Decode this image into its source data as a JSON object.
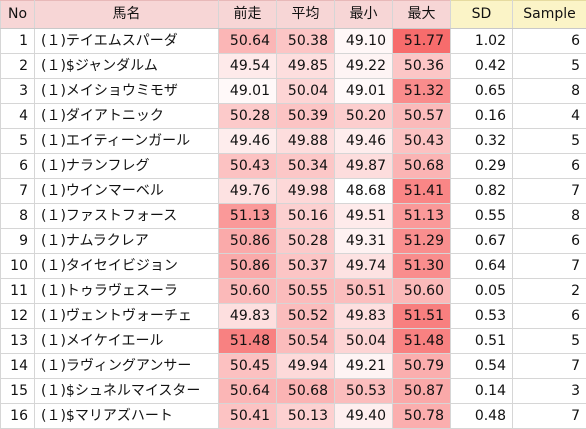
{
  "headers": {
    "no": "No",
    "name": "馬名",
    "last": "前走",
    "avg": "平均",
    "min": "最小",
    "max": "最大",
    "sd": "SD",
    "sample": "Sample"
  },
  "colors": {
    "header_fill": "#f7d6d6",
    "header_fill_stats": "#fbf4c7",
    "heat_low": "#ffffff",
    "heat_high": "#f76a6a"
  },
  "heat_scale": {
    "min": 48.6,
    "max": 51.8
  },
  "rows": [
    {
      "no": "1",
      "name": "(１)テイエムスパーダ",
      "last": "50.64",
      "avg": "50.38",
      "min": "49.10",
      "max": "51.77",
      "sd": "1.02",
      "sample": "6"
    },
    {
      "no": "2",
      "name": "(１)$ジャンダルム",
      "last": "49.54",
      "avg": "49.85",
      "min": "49.22",
      "max": "50.36",
      "sd": "0.42",
      "sample": "5"
    },
    {
      "no": "3",
      "name": "(１)メイショウミモザ",
      "last": "49.01",
      "avg": "50.04",
      "min": "49.01",
      "max": "51.32",
      "sd": "0.65",
      "sample": "8"
    },
    {
      "no": "4",
      "name": "(１)ダイアトニック",
      "last": "50.28",
      "avg": "50.39",
      "min": "50.20",
      "max": "50.57",
      "sd": "0.16",
      "sample": "4"
    },
    {
      "no": "5",
      "name": "(１)エイティーンガール",
      "last": "49.46",
      "avg": "49.88",
      "min": "49.46",
      "max": "50.43",
      "sd": "0.32",
      "sample": "5"
    },
    {
      "no": "6",
      "name": "(１)ナランフレグ",
      "last": "50.43",
      "avg": "50.34",
      "min": "49.87",
      "max": "50.68",
      "sd": "0.29",
      "sample": "6"
    },
    {
      "no": "7",
      "name": "(１)ウインマーベル",
      "last": "49.76",
      "avg": "49.98",
      "min": "48.68",
      "max": "51.41",
      "sd": "0.82",
      "sample": "7"
    },
    {
      "no": "8",
      "name": "(１)ファストフォース",
      "last": "51.13",
      "avg": "50.16",
      "min": "49.51",
      "max": "51.13",
      "sd": "0.55",
      "sample": "8"
    },
    {
      "no": "9",
      "name": "(１)ナムラクレア",
      "last": "50.86",
      "avg": "50.28",
      "min": "49.31",
      "max": "51.29",
      "sd": "0.67",
      "sample": "6"
    },
    {
      "no": "10",
      "name": "(１)タイセイビジョン",
      "last": "50.86",
      "avg": "50.37",
      "min": "49.74",
      "max": "51.30",
      "sd": "0.64",
      "sample": "7"
    },
    {
      "no": "11",
      "name": "(１)トゥラヴェスーラ",
      "last": "50.60",
      "avg": "50.55",
      "min": "50.51",
      "max": "50.60",
      "sd": "0.05",
      "sample": "2"
    },
    {
      "no": "12",
      "name": "(１)ヴェントヴォーチェ",
      "last": "49.83",
      "avg": "50.52",
      "min": "49.83",
      "max": "51.51",
      "sd": "0.53",
      "sample": "6"
    },
    {
      "no": "13",
      "name": "(１)メイケイエール",
      "last": "51.48",
      "avg": "50.54",
      "min": "50.04",
      "max": "51.48",
      "sd": "0.51",
      "sample": "5"
    },
    {
      "no": "14",
      "name": "(１)ラヴィングアンサー",
      "last": "50.45",
      "avg": "49.94",
      "min": "49.21",
      "max": "50.79",
      "sd": "0.54",
      "sample": "7"
    },
    {
      "no": "15",
      "name": "(１)$シュネルマイスター",
      "last": "50.64",
      "avg": "50.68",
      "min": "50.53",
      "max": "50.87",
      "sd": "0.14",
      "sample": "3"
    },
    {
      "no": "16",
      "name": "(１)$マリアズハート",
      "last": "50.41",
      "avg": "50.13",
      "min": "49.40",
      "max": "50.78",
      "sd": "0.48",
      "sample": "7"
    }
  ]
}
